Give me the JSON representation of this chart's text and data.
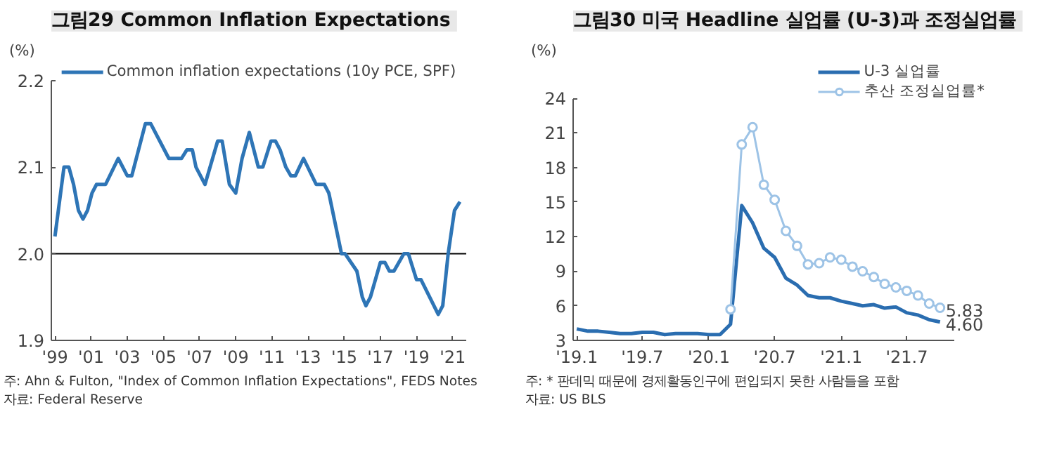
{
  "chart_data": [
    {
      "type": "line",
      "title": "그림29  Common Inflation Expectations",
      "ylabel": "(%)",
      "x": [
        1999.0,
        1999.5,
        1999.77,
        2000.03,
        2000.3,
        2000.55,
        2000.8,
        2001.05,
        2001.3,
        2001.8,
        2002.5,
        2003.0,
        2003.25,
        2004.0,
        2004.3,
        2005.3,
        2006.0,
        2006.3,
        2006.6,
        2006.8,
        2007.3,
        2008.0,
        2008.25,
        2008.65,
        2009.0,
        2009.35,
        2009.75,
        2010.25,
        2010.5,
        2010.95,
        2011.2,
        2011.45,
        2011.77,
        2012.05,
        2012.3,
        2012.75,
        2013.45,
        2013.9,
        2014.15,
        2014.5,
        2014.85,
        2015.05,
        2015.7,
        2016.0,
        2016.2,
        2016.45,
        2017.0,
        2017.25,
        2017.5,
        2017.75,
        2018.3,
        2018.55,
        2018.7,
        2019.0,
        2019.25,
        2020.2,
        2020.45,
        2020.75,
        2021.1,
        2021.4
      ],
      "series": [
        {
          "name": "Common inflation expectations (10y PCE, SPF)",
          "color": "#2e75b6",
          "values": [
            2.02,
            2.1,
            2.1,
            2.08,
            2.05,
            2.04,
            2.05,
            2.07,
            2.08,
            2.08,
            2.11,
            2.09,
            2.09,
            2.15,
            2.15,
            2.11,
            2.11,
            2.12,
            2.12,
            2.1,
            2.08,
            2.13,
            2.13,
            2.08,
            2.07,
            2.11,
            2.14,
            2.1,
            2.1,
            2.13,
            2.13,
            2.12,
            2.1,
            2.09,
            2.09,
            2.11,
            2.08,
            2.08,
            2.07,
            2.035,
            2.0,
            2.0,
            1.98,
            1.95,
            1.94,
            1.95,
            1.99,
            1.99,
            1.98,
            1.98,
            2.0,
            2.0,
            1.99,
            1.97,
            1.97,
            1.93,
            1.94,
            2.0,
            2.05,
            2.06
          ]
        }
      ],
      "xlim": [
        1998.8,
        2021.75
      ],
      "ylim": [
        1.9,
        2.2
      ],
      "xticks": [
        {
          "value": 1999,
          "label": "'99"
        },
        {
          "value": 2001,
          "label": "'01"
        },
        {
          "value": 2003,
          "label": "'03"
        },
        {
          "value": 2005,
          "label": "'05"
        },
        {
          "value": 2007,
          "label": "'07"
        },
        {
          "value": 2009,
          "label": "'09"
        },
        {
          "value": 2011,
          "label": "'11"
        },
        {
          "value": 2013,
          "label": "'13"
        },
        {
          "value": 2015,
          "label": "'15"
        },
        {
          "value": 2017,
          "label": "'17"
        },
        {
          "value": 2019,
          "label": "'19"
        },
        {
          "value": 2021,
          "label": "'21"
        }
      ],
      "yticks": [
        {
          "value": 1.9,
          "label": "1.9"
        },
        {
          "value": 2.0,
          "label": "2.0"
        },
        {
          "value": 2.1,
          "label": "2.1"
        },
        {
          "value": 2.2,
          "label": "2.2"
        }
      ],
      "ref_lines": [
        {
          "axis": "y",
          "value": 2.0,
          "label": null,
          "color": "#000000"
        }
      ],
      "grid": false,
      "legend": "top",
      "annotations": [
        "주: Ahn & Fulton, \"Index of Common Inflation Expectations\", FEDS Notes",
        "자료: Federal Reserve"
      ]
    },
    {
      "type": "line",
      "title": "그림30  미국 Headline 실업률 (U-3)과 조정실업률",
      "ylabel": "(%)",
      "x": [
        "2019-01",
        "2019-02",
        "2019-03",
        "2019-04",
        "2019-05",
        "2019-06",
        "2019-07",
        "2019-08",
        "2019-09",
        "2019-10",
        "2019-11",
        "2019-12",
        "2020-01",
        "2020-02",
        "2020-03",
        "2020-04",
        "2020-05",
        "2020-06",
        "2020-07",
        "2020-08",
        "2020-09",
        "2020-10",
        "2020-11",
        "2020-12",
        "2021-01",
        "2021-02",
        "2021-03",
        "2021-04",
        "2021-05",
        "2021-06",
        "2021-07",
        "2021-08",
        "2021-09",
        "2021-10"
      ],
      "series": [
        {
          "name": "U-3 실업률",
          "color": "#2a6db0",
          "marker": "none",
          "values": [
            4.0,
            3.8,
            3.8,
            3.7,
            3.6,
            3.6,
            3.7,
            3.7,
            3.5,
            3.6,
            3.6,
            3.6,
            3.5,
            3.5,
            4.4,
            14.7,
            13.2,
            11.0,
            10.2,
            8.4,
            7.8,
            6.9,
            6.7,
            6.7,
            6.4,
            6.2,
            6.0,
            6.1,
            5.8,
            5.9,
            5.4,
            5.2,
            4.8,
            4.6
          ],
          "value_labels": [
            null,
            null,
            null,
            null,
            null,
            null,
            null,
            null,
            null,
            null,
            null,
            null,
            null,
            null,
            null,
            null,
            null,
            null,
            null,
            null,
            null,
            null,
            null,
            null,
            null,
            null,
            null,
            null,
            null,
            null,
            null,
            null,
            null,
            "4.60"
          ]
        },
        {
          "name": "추산 조정실업률*",
          "color": "#9dc3e6",
          "marker": "circle",
          "values": [
            null,
            null,
            null,
            null,
            null,
            null,
            null,
            null,
            null,
            null,
            null,
            null,
            null,
            null,
            5.7,
            20.0,
            21.5,
            16.5,
            15.2,
            12.5,
            11.2,
            9.6,
            9.7,
            10.2,
            10.0,
            9.4,
            9.0,
            8.5,
            7.9,
            7.6,
            7.3,
            6.9,
            6.2,
            5.83
          ],
          "value_labels": [
            null,
            null,
            null,
            null,
            null,
            null,
            null,
            null,
            null,
            null,
            null,
            null,
            null,
            null,
            null,
            null,
            null,
            null,
            null,
            null,
            null,
            null,
            null,
            null,
            null,
            null,
            null,
            null,
            null,
            null,
            null,
            null,
            null,
            "5.83"
          ]
        }
      ],
      "xlim": [
        "2018-12-22",
        "2021-11-08"
      ],
      "ylim": [
        3,
        24
      ],
      "xticks": [
        {
          "value": "2019-01",
          "label": "'19.1"
        },
        {
          "value": "2019-07",
          "label": "'19.7"
        },
        {
          "value": "2020-01",
          "label": "'20.1"
        },
        {
          "value": "2020-07",
          "label": "'20.7"
        },
        {
          "value": "2021-01",
          "label": "'21.1"
        },
        {
          "value": "2021-07",
          "label": "'21.7"
        }
      ],
      "yticks": [
        3,
        6,
        9,
        12,
        15,
        18,
        21,
        24
      ],
      "grid": false,
      "legend": "top right",
      "annotations": [
        "주: * 판데믹 때문에 경제활동인구에 편입되지 못한 사람들을 포함",
        "자료: US BLS"
      ]
    }
  ]
}
